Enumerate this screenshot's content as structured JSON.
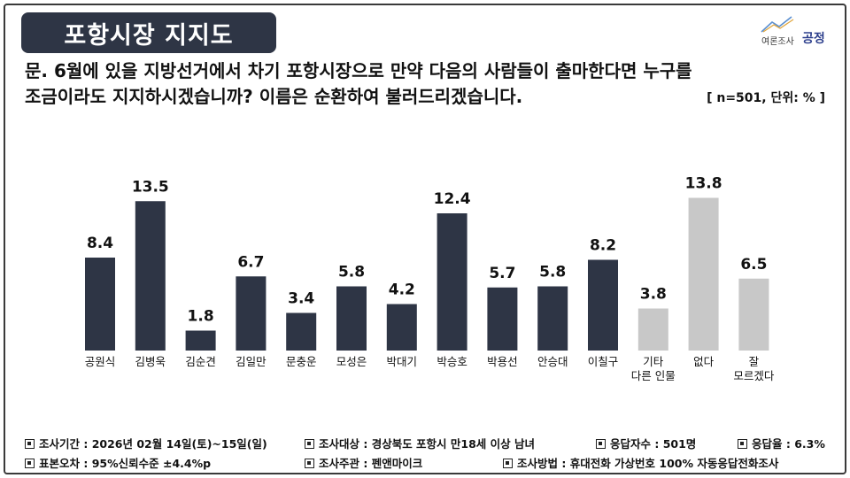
{
  "header": {
    "title": "포항시장 지지도",
    "logo_small": "여론조사",
    "logo_big": "공정",
    "question_line1": "문. 6월에 있을 지방선거에서 차기 포항시장으로 만약 다음의 사람들이 출마한다면 누구를",
    "question_line2": "조금이라도 지지하시겠습니까? 이름은 순환하여 불러드리겠습니다.",
    "unit_note": "[ n=501, 단위: % ]"
  },
  "chart_data": {
    "type": "bar",
    "categories": [
      "공원식",
      "김병욱",
      "김순견",
      "김일만",
      "문충운",
      "모성은",
      "박대기",
      "박승호",
      "박용선",
      "안승대",
      "이칠구",
      "기타\n다른 인물",
      "없다",
      "잘\n모르겠다"
    ],
    "values": [
      8.4,
      13.5,
      1.8,
      6.7,
      3.4,
      5.8,
      4.2,
      12.4,
      5.7,
      5.8,
      8.2,
      3.8,
      13.8,
      6.5
    ],
    "value_labels": [
      "8.4",
      "13.5",
      "1.8",
      "6.7",
      "3.4",
      "5.8",
      "4.2",
      "12.4",
      "5.7",
      "5.8",
      "8.2",
      "3.8",
      "13.8",
      "6.5"
    ],
    "ylim": [
      0,
      15
    ],
    "colors": {
      "candidate": "#2e3545",
      "other": "#c8c8c8"
    },
    "bar_color_groups": [
      "candidate",
      "candidate",
      "candidate",
      "candidate",
      "candidate",
      "candidate",
      "candidate",
      "candidate",
      "candidate",
      "candidate",
      "candidate",
      "other",
      "other",
      "other"
    ],
    "grid": false,
    "legend": "none"
  },
  "footer": {
    "period": "조사기간 : 2026년 02월 14일(토)~15일(일)",
    "target": "조사대상 : 경상북도 포항시 만18세 이상 남녀",
    "respondents": "응답자수 : 501명",
    "response_rate": "응답율 : 6.3%",
    "error": "표본오차 : 95%신뢰수준 ±4.4%p",
    "organizer": "조사주관 : 펜앤마이크",
    "method": "조사방법 : 휴대전화 가상번호 100% 자동응답전화조사"
  }
}
